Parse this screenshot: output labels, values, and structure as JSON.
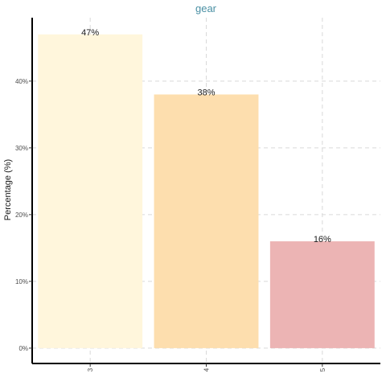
{
  "chart_data": {
    "type": "bar",
    "title": "gear",
    "xlabel": "",
    "ylabel": "Percentage (%)",
    "categories": [
      "3",
      "4",
      "5"
    ],
    "values": [
      47,
      38,
      16
    ],
    "data_labels": [
      "47%",
      "38%",
      "16%"
    ],
    "bar_colors": [
      "#fff6dc",
      "#fddeae",
      "#ecb4b4"
    ],
    "ylim": [
      -2.3,
      49.5
    ],
    "yticks": [
      0,
      10,
      20,
      30,
      40
    ],
    "ytick_labels": [
      "0%",
      "10%",
      "20%",
      "30%",
      "40%"
    ],
    "grid": true,
    "legend": "none"
  }
}
